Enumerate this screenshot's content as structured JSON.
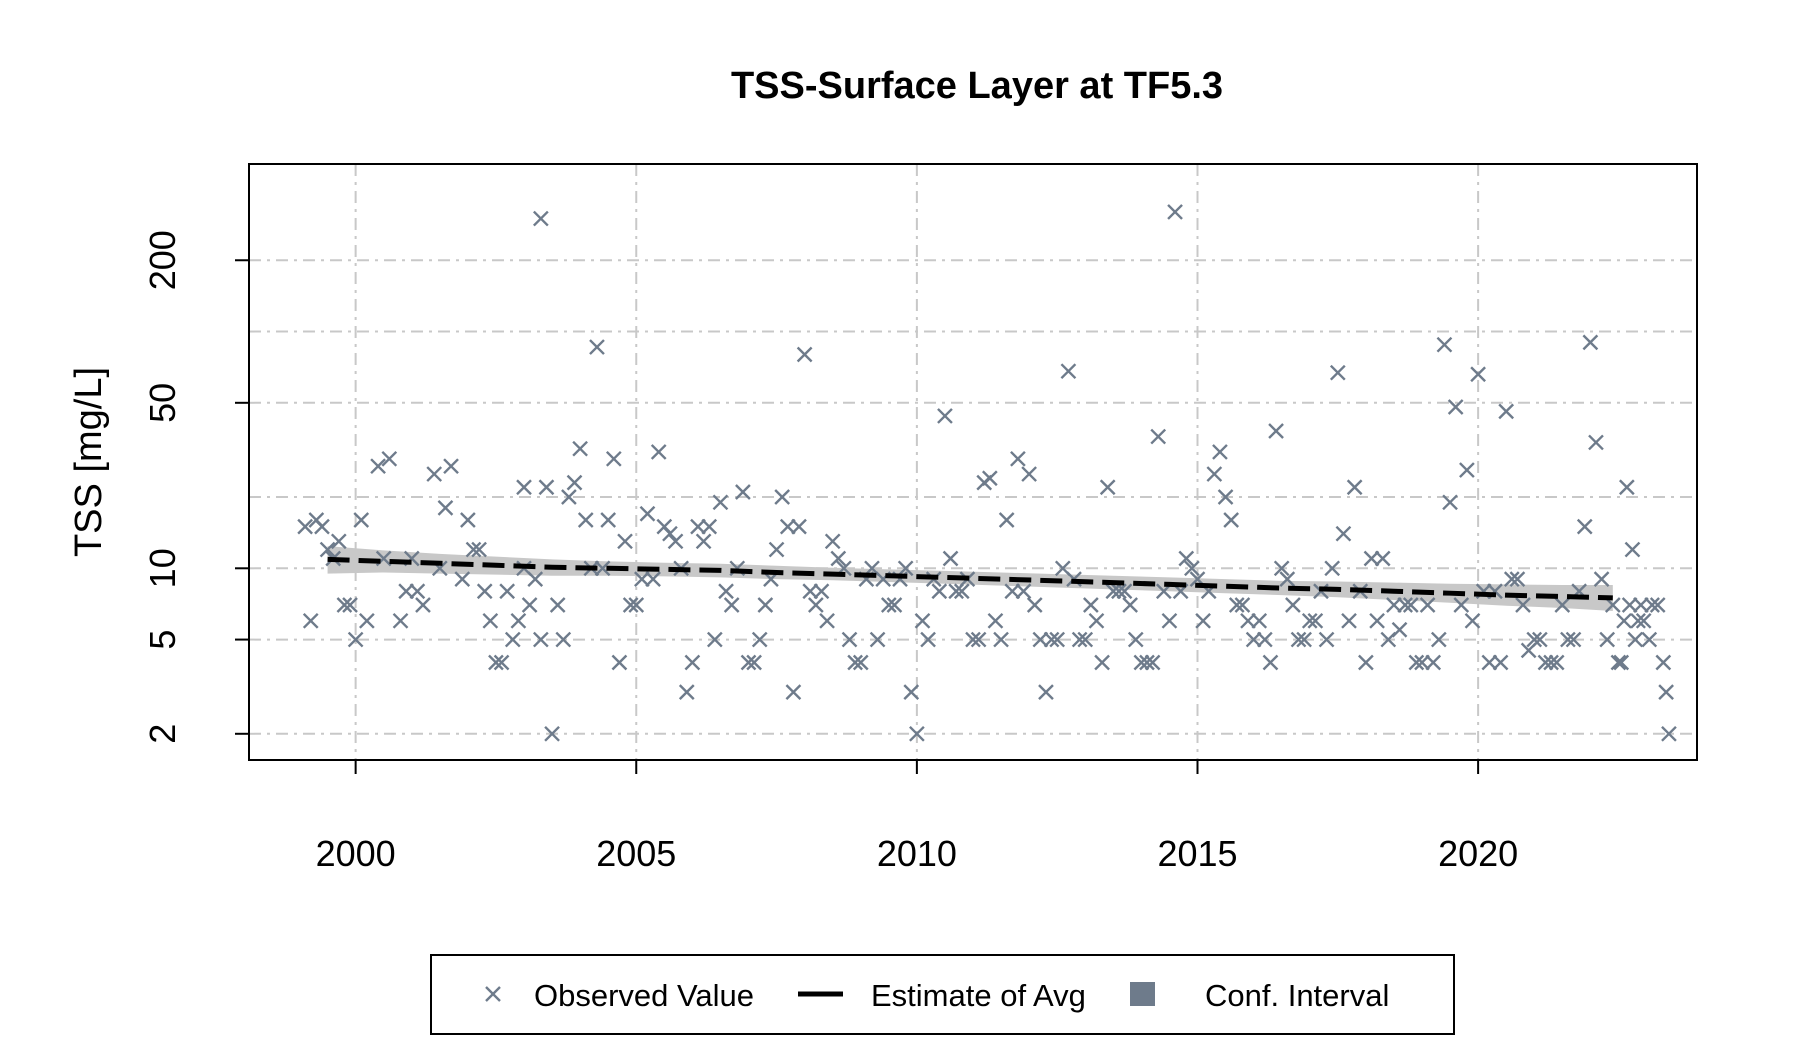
{
  "chart_data": {
    "type": "scatter",
    "title": "TSS-Surface Layer at TF5.3",
    "xlabel": "",
    "ylabel": "TSS [mg/L]",
    "yscale": "log",
    "xlim": [
      1998.1,
      2023.9
    ],
    "ylim": [
      1.55,
      510
    ],
    "xticks": [
      2000,
      2005,
      2010,
      2015,
      2020
    ],
    "yticks": [
      2,
      5,
      10,
      50,
      200
    ],
    "ygrid": [
      2,
      5,
      10,
      20,
      50,
      100,
      200
    ],
    "grid": true,
    "colors": {
      "observed": "#6e7b8b",
      "estimate": "#000000",
      "ci": "#c8c8c8",
      "ci_legend": "#6e7b8b"
    },
    "series": [
      {
        "name": "Observed Value",
        "kind": "points",
        "marker": "x",
        "points": [
          [
            1999.1,
            15
          ],
          [
            1999.2,
            6
          ],
          [
            1999.3,
            16
          ],
          [
            1999.4,
            15
          ],
          [
            1999.5,
            12
          ],
          [
            1999.6,
            11
          ],
          [
            1999.7,
            13
          ],
          [
            1999.8,
            7
          ],
          [
            1999.9,
            7
          ],
          [
            2000.0,
            5
          ],
          [
            2000.1,
            16
          ],
          [
            2000.2,
            6
          ],
          [
            2000.4,
            27
          ],
          [
            2000.5,
            11
          ],
          [
            2000.6,
            29
          ],
          [
            2000.8,
            6
          ],
          [
            2000.9,
            8
          ],
          [
            2001.0,
            11
          ],
          [
            2001.1,
            8
          ],
          [
            2001.2,
            7
          ],
          [
            2001.4,
            25
          ],
          [
            2001.5,
            10
          ],
          [
            2001.6,
            18
          ],
          [
            2001.7,
            27
          ],
          [
            2001.9,
            9
          ],
          [
            2002.0,
            16
          ],
          [
            2002.1,
            12
          ],
          [
            2002.2,
            12
          ],
          [
            2002.3,
            8
          ],
          [
            2002.4,
            6
          ],
          [
            2002.5,
            4
          ],
          [
            2002.6,
            4
          ],
          [
            2002.7,
            8
          ],
          [
            2002.8,
            5
          ],
          [
            2002.9,
            6
          ],
          [
            2003.0,
            10
          ],
          [
            2003.1,
            7
          ],
          [
            2003.2,
            9
          ],
          [
            2003.3,
            5
          ],
          [
            2003.4,
            22
          ],
          [
            2003.5,
            2
          ],
          [
            2003.6,
            7
          ],
          [
            2003.7,
            5
          ],
          [
            2003.8,
            20
          ],
          [
            2003.9,
            23
          ],
          [
            2004.0,
            32
          ],
          [
            2004.1,
            16
          ],
          [
            2004.2,
            10
          ],
          [
            2004.3,
            86
          ],
          [
            2004.4,
            10
          ],
          [
            2004.5,
            16
          ],
          [
            2004.6,
            29
          ],
          [
            2004.7,
            4
          ],
          [
            2004.8,
            13
          ],
          [
            2004.9,
            7
          ],
          [
            2005.0,
            7
          ],
          [
            2005.1,
            9
          ],
          [
            2005.2,
            17
          ],
          [
            2005.3,
            9
          ],
          [
            2005.4,
            31
          ],
          [
            2005.5,
            15
          ],
          [
            2005.6,
            14
          ],
          [
            2005.7,
            13
          ],
          [
            2005.8,
            10
          ],
          [
            2005.9,
            3
          ],
          [
            2006.0,
            4
          ],
          [
            2006.1,
            15
          ],
          [
            2006.2,
            13
          ],
          [
            2006.3,
            15
          ],
          [
            2006.4,
            5
          ],
          [
            2006.5,
            19
          ],
          [
            2006.6,
            8
          ],
          [
            2006.7,
            7
          ],
          [
            2006.8,
            10
          ],
          [
            2006.9,
            21
          ],
          [
            2007.0,
            4
          ],
          [
            2007.1,
            4
          ],
          [
            2007.2,
            5
          ],
          [
            2007.3,
            7
          ],
          [
            2007.4,
            9
          ],
          [
            2007.5,
            12
          ],
          [
            2007.6,
            20
          ],
          [
            2007.7,
            15
          ],
          [
            2007.8,
            3
          ],
          [
            2007.9,
            15
          ],
          [
            2008.0,
            80
          ],
          [
            2008.1,
            8
          ],
          [
            2008.2,
            7
          ],
          [
            2008.3,
            8
          ],
          [
            2008.4,
            6
          ],
          [
            2008.5,
            13
          ],
          [
            2008.6,
            11
          ],
          [
            2008.7,
            10
          ],
          [
            2008.8,
            5
          ],
          [
            2008.9,
            4
          ],
          [
            2009.0,
            4
          ],
          [
            2009.1,
            9
          ],
          [
            2009.2,
            10
          ],
          [
            2009.3,
            5
          ],
          [
            2009.4,
            9
          ],
          [
            2009.5,
            7
          ],
          [
            2009.6,
            7
          ],
          [
            2009.7,
            9
          ],
          [
            2009.8,
            10
          ],
          [
            2009.9,
            3
          ],
          [
            2010.0,
            2
          ],
          [
            2010.1,
            6
          ],
          [
            2010.2,
            5
          ],
          [
            2010.3,
            9
          ],
          [
            2010.4,
            8
          ],
          [
            2010.5,
            44
          ],
          [
            2010.6,
            11
          ],
          [
            2010.7,
            8
          ],
          [
            2010.8,
            8
          ],
          [
            2010.9,
            9
          ],
          [
            2011.0,
            5
          ],
          [
            2011.1,
            5
          ],
          [
            2011.2,
            23
          ],
          [
            2011.3,
            24
          ],
          [
            2011.4,
            6
          ],
          [
            2011.5,
            5
          ],
          [
            2011.6,
            16
          ],
          [
            2011.7,
            8
          ],
          [
            2011.8,
            29
          ],
          [
            2011.9,
            8
          ],
          [
            2012.0,
            25
          ],
          [
            2012.1,
            7
          ],
          [
            2012.2,
            5
          ],
          [
            2012.3,
            3
          ],
          [
            2012.4,
            5
          ],
          [
            2012.5,
            5
          ],
          [
            2012.6,
            10
          ],
          [
            2012.7,
            68
          ],
          [
            2012.8,
            9
          ],
          [
            2012.9,
            5
          ],
          [
            2013.0,
            5
          ],
          [
            2013.1,
            7
          ],
          [
            2013.2,
            6
          ],
          [
            2013.3,
            4
          ],
          [
            2013.4,
            22
          ],
          [
            2013.5,
            8
          ],
          [
            2013.6,
            8
          ],
          [
            2013.7,
            8
          ],
          [
            2013.8,
            7
          ],
          [
            2013.9,
            5
          ],
          [
            2014.0,
            4
          ],
          [
            2014.1,
            4
          ],
          [
            2014.2,
            4
          ],
          [
            2014.3,
            36
          ],
          [
            2014.4,
            8
          ],
          [
            2014.5,
            6
          ],
          [
            2014.6,
            320
          ],
          [
            2014.7,
            8
          ],
          [
            2014.8,
            11
          ],
          [
            2014.9,
            10
          ],
          [
            2015.0,
            9
          ],
          [
            2015.1,
            6
          ],
          [
            2015.2,
            8
          ],
          [
            2015.3,
            25
          ],
          [
            2015.4,
            31
          ],
          [
            2015.5,
            20
          ],
          [
            2015.6,
            16
          ],
          [
            2015.7,
            7
          ],
          [
            2015.8,
            7
          ],
          [
            2015.9,
            6
          ],
          [
            2016.0,
            5
          ],
          [
            2016.1,
            6
          ],
          [
            2016.2,
            5
          ],
          [
            2016.3,
            4
          ],
          [
            2016.4,
            38
          ],
          [
            2016.5,
            10
          ],
          [
            2016.6,
            9
          ],
          [
            2016.7,
            7
          ],
          [
            2016.8,
            5
          ],
          [
            2016.9,
            5
          ],
          [
            2017.0,
            6
          ],
          [
            2017.1,
            6
          ],
          [
            2017.2,
            8
          ],
          [
            2017.3,
            5
          ],
          [
            2017.4,
            10
          ],
          [
            2017.5,
            67
          ],
          [
            2017.6,
            14
          ],
          [
            2017.7,
            6
          ],
          [
            2017.8,
            22
          ],
          [
            2017.9,
            8
          ],
          [
            2018.0,
            4
          ],
          [
            2018.1,
            11
          ],
          [
            2018.2,
            6
          ],
          [
            2018.3,
            11
          ],
          [
            2018.4,
            5
          ],
          [
            2018.5,
            7
          ],
          [
            2018.6,
            5.5
          ],
          [
            2018.7,
            7
          ],
          [
            2018.8,
            7
          ],
          [
            2018.9,
            4
          ],
          [
            2019.0,
            4
          ],
          [
            2019.1,
            7
          ],
          [
            2019.2,
            4
          ],
          [
            2019.3,
            5
          ],
          [
            2019.4,
            88
          ],
          [
            2019.5,
            19
          ],
          [
            2019.6,
            48
          ],
          [
            2019.7,
            7
          ],
          [
            2019.8,
            26
          ],
          [
            2019.9,
            6
          ],
          [
            2020.0,
            66
          ],
          [
            2020.1,
            8
          ],
          [
            2020.2,
            4
          ],
          [
            2020.3,
            8
          ],
          [
            2020.4,
            4
          ],
          [
            2020.5,
            46
          ],
          [
            2020.6,
            9
          ],
          [
            2020.7,
            9
          ],
          [
            2020.8,
            7
          ],
          [
            2020.9,
            4.5
          ],
          [
            2021.0,
            5
          ],
          [
            2021.1,
            5
          ],
          [
            2021.2,
            4
          ],
          [
            2021.3,
            4
          ],
          [
            2021.4,
            4
          ],
          [
            2021.5,
            7
          ],
          [
            2021.6,
            5
          ],
          [
            2021.7,
            5
          ],
          [
            2021.8,
            8
          ],
          [
            2021.9,
            15
          ],
          [
            2022.0,
            90
          ],
          [
            2022.1,
            34
          ],
          [
            2022.2,
            9
          ],
          [
            2022.3,
            5
          ],
          [
            2022.4,
            7
          ],
          [
            2022.5,
            4
          ],
          [
            2022.6,
            6
          ],
          [
            2022.7,
            7
          ],
          [
            2022.8,
            5
          ],
          [
            2022.9,
            7
          ],
          [
            2022.55,
            4
          ],
          [
            2022.65,
            22
          ],
          [
            2022.75,
            12
          ],
          [
            2022.85,
            6
          ],
          [
            2022.95,
            6
          ],
          [
            2023.05,
            5
          ],
          [
            2023.1,
            7
          ],
          [
            2023.2,
            7
          ],
          [
            2023.3,
            4
          ],
          [
            2023.35,
            3
          ],
          [
            2023.4,
            2
          ],
          [
            2003.3,
            300
          ],
          [
            2003.0,
            22
          ]
        ]
      },
      {
        "name": "Estimate of Avg",
        "kind": "line",
        "line_style": "dashed",
        "points": [
          [
            1999.5,
            10.9
          ],
          [
            2000.5,
            10.7
          ],
          [
            2001.5,
            10.5
          ],
          [
            2002.5,
            10.3
          ],
          [
            2003.5,
            10.1
          ],
          [
            2004.5,
            10.0
          ],
          [
            2005.5,
            9.9
          ],
          [
            2006.5,
            9.8
          ],
          [
            2007.5,
            9.6
          ],
          [
            2008.5,
            9.45
          ],
          [
            2009.5,
            9.3
          ],
          [
            2010.5,
            9.15
          ],
          [
            2011.5,
            9.0
          ],
          [
            2012.5,
            8.85
          ],
          [
            2013.5,
            8.7
          ],
          [
            2014.5,
            8.55
          ],
          [
            2015.5,
            8.4
          ],
          [
            2016.5,
            8.25
          ],
          [
            2017.5,
            8.15
          ],
          [
            2018.5,
            8.0
          ],
          [
            2019.5,
            7.85
          ],
          [
            2020.5,
            7.7
          ],
          [
            2021.5,
            7.6
          ],
          [
            2022.4,
            7.5
          ]
        ]
      },
      {
        "name": "Conf. Interval",
        "kind": "band",
        "points": [
          [
            1999.5,
            9.5,
            12.4
          ],
          [
            2000.5,
            9.6,
            11.9
          ],
          [
            2001.5,
            9.5,
            11.5
          ],
          [
            2002.5,
            9.4,
            11.2
          ],
          [
            2003.5,
            9.3,
            10.9
          ],
          [
            2004.5,
            9.3,
            10.7
          ],
          [
            2005.5,
            9.25,
            10.55
          ],
          [
            2006.5,
            9.15,
            10.45
          ],
          [
            2007.5,
            9.0,
            10.25
          ],
          [
            2008.5,
            8.9,
            10.05
          ],
          [
            2009.5,
            8.75,
            9.9
          ],
          [
            2010.5,
            8.6,
            9.75
          ],
          [
            2011.5,
            8.45,
            9.6
          ],
          [
            2012.5,
            8.3,
            9.45
          ],
          [
            2013.5,
            8.15,
            9.3
          ],
          [
            2014.5,
            8.0,
            9.15
          ],
          [
            2015.5,
            7.85,
            9.0
          ],
          [
            2016.5,
            7.7,
            8.85
          ],
          [
            2017.5,
            7.55,
            8.8
          ],
          [
            2018.5,
            7.35,
            8.7
          ],
          [
            2019.5,
            7.15,
            8.6
          ],
          [
            2020.5,
            6.95,
            8.55
          ],
          [
            2021.5,
            6.8,
            8.5
          ],
          [
            2022.4,
            6.6,
            8.5
          ]
        ]
      }
    ],
    "legend": {
      "position": "bottom",
      "entries": [
        "Observed Value",
        "Estimate of Avg",
        "Conf. Interval"
      ]
    }
  }
}
